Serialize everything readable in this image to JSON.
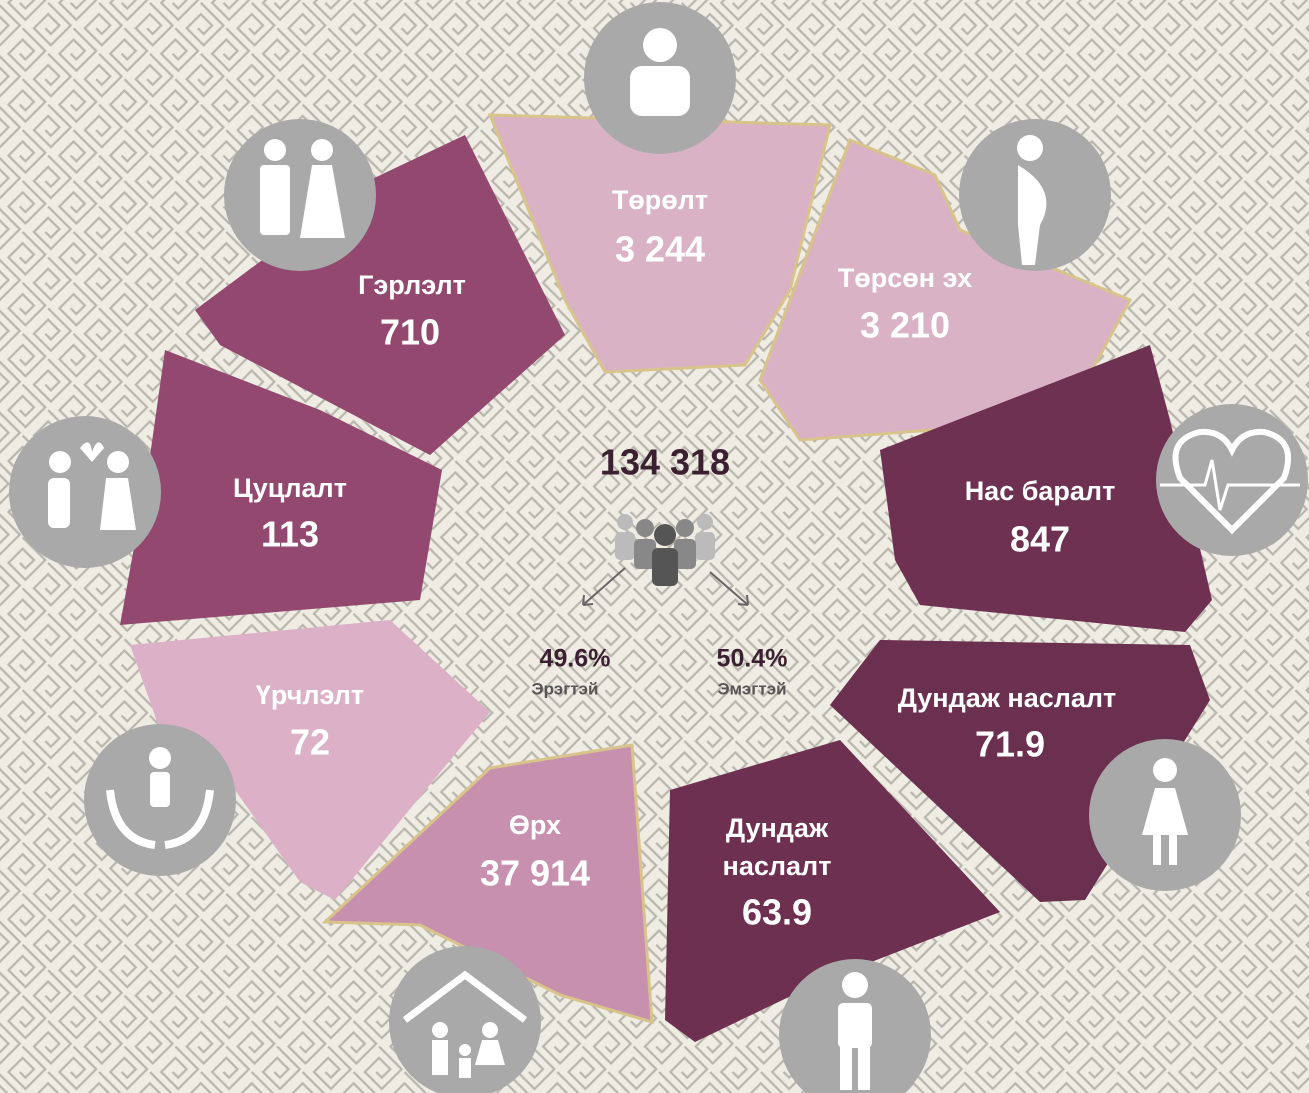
{
  "center": {
    "total": "134 318",
    "male_share": "49.6%",
    "male_label": "Эрэгтэй",
    "female_share": "50.4%",
    "female_label": "Эмэгтэй"
  },
  "segments": [
    {
      "label": "Төрөлт",
      "value": "3 244"
    },
    {
      "label": "Төрсөн эх",
      "value": "3 210"
    },
    {
      "label": "Нас баралт",
      "value": "847"
    },
    {
      "label": "Дундаж наслалт",
      "value": "71.9"
    },
    {
      "label": "Дундаж наслалт",
      "value": "63.9"
    },
    {
      "label": "Өрх",
      "value": "37 914"
    },
    {
      "label": "Үрчлэлт",
      "value": "72"
    },
    {
      "label": "Цуцлалт",
      "value": "113"
    },
    {
      "label": "Гэрлэлт",
      "value": "710"
    }
  ]
}
